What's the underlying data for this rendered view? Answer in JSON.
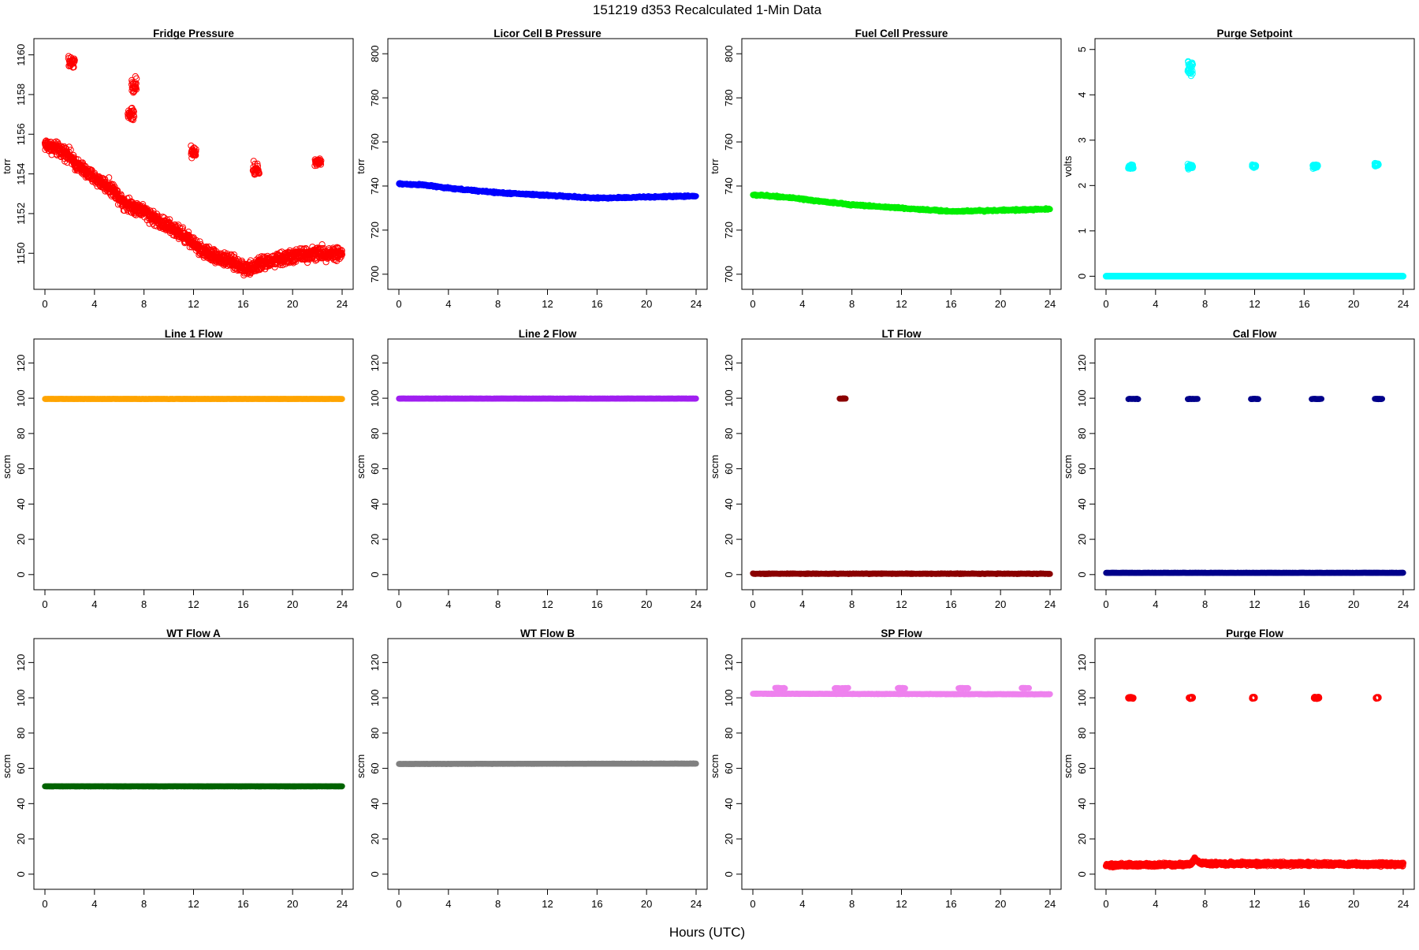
{
  "figure": {
    "title": "151219   d353   Recalculated 1-Min Data",
    "xlabel": "Hours (UTC)"
  },
  "chart_data": [
    {
      "type": "scatter",
      "title": "Fridge Pressure",
      "ylabel": "torr",
      "xlim": [
        0,
        24
      ],
      "ylim": [
        1148.5,
        1160.5
      ],
      "xticks": [
        0,
        4,
        8,
        12,
        16,
        20,
        24
      ],
      "yticks": [
        1150,
        1152,
        1154,
        1156,
        1158,
        1160
      ],
      "color": "#ff0000",
      "marker": "open-circle",
      "noise": 0.5,
      "line": [
        [
          0,
          1155.5
        ],
        [
          1.9,
          1155.0
        ],
        [
          2.3,
          1154.6
        ],
        [
          3.5,
          1154.0
        ],
        [
          5.5,
          1153.2
        ],
        [
          6.5,
          1152.5
        ],
        [
          7.8,
          1152.2
        ],
        [
          9,
          1151.7
        ],
        [
          11.5,
          1150.8
        ],
        [
          12.5,
          1150.2
        ],
        [
          14,
          1149.8
        ],
        [
          16.5,
          1149.2
        ],
        [
          17.5,
          1149.5
        ],
        [
          19,
          1149.7
        ],
        [
          20.5,
          1149.9
        ],
        [
          22,
          1150.0
        ],
        [
          24,
          1150.0
        ]
      ],
      "clusters": [
        {
          "x": [
            1.9,
            2.4
          ],
          "y": 1159.6,
          "spread": 0.6
        },
        {
          "x": [
            6.7,
            7.2
          ],
          "y": 1157.0,
          "spread": 0.5
        },
        {
          "x": [
            7.0,
            7.4
          ],
          "y": 1158.4,
          "spread": 0.6
        },
        {
          "x": [
            11.8,
            12.2
          ],
          "y": 1155.1,
          "spread": 0.4
        },
        {
          "x": [
            16.8,
            17.3
          ],
          "y": 1154.2,
          "spread": 0.6
        },
        {
          "x": [
            21.8,
            22.3
          ],
          "y": 1154.6,
          "spread": 0.3
        }
      ]
    },
    {
      "type": "scatter",
      "title": "Licor Cell B Pressure",
      "ylabel": "torr",
      "xlim": [
        0,
        24
      ],
      "ylim": [
        696,
        804
      ],
      "xticks": [
        0,
        4,
        8,
        12,
        16,
        20,
        24
      ],
      "yticks": [
        700,
        720,
        740,
        760,
        780,
        800
      ],
      "color": "#0000ff",
      "marker": "filled",
      "noise": 0.6,
      "line": [
        [
          0,
          741
        ],
        [
          2,
          740.5
        ],
        [
          4,
          739.0
        ],
        [
          8,
          737.0
        ],
        [
          12,
          735.8
        ],
        [
          16,
          734.5
        ],
        [
          20,
          735.0
        ],
        [
          24,
          735.5
        ]
      ],
      "clusters": []
    },
    {
      "type": "scatter",
      "title": "Fuel Cell Pressure",
      "ylabel": "torr",
      "xlim": [
        0,
        24
      ],
      "ylim": [
        696,
        804
      ],
      "xticks": [
        0,
        4,
        8,
        12,
        16,
        20,
        24
      ],
      "yticks": [
        700,
        720,
        740,
        760,
        780,
        800
      ],
      "color": "#00ee00",
      "marker": "filled",
      "noise": 0.6,
      "line": [
        [
          0,
          736
        ],
        [
          2,
          735.3
        ],
        [
          4,
          734.0
        ],
        [
          8,
          731.5
        ],
        [
          12,
          730.0
        ],
        [
          16,
          728.5
        ],
        [
          20,
          729.0
        ],
        [
          24,
          729.5
        ]
      ],
      "clusters": []
    },
    {
      "type": "scatter",
      "title": "Purge Setpoint",
      "ylabel": "volts",
      "xlim": [
        0,
        24
      ],
      "ylim": [
        -0.15,
        5.1
      ],
      "xticks": [
        0,
        4,
        8,
        12,
        16,
        20,
        24
      ],
      "yticks": [
        0,
        1,
        2,
        3,
        4,
        5
      ],
      "color": "#00ffff",
      "marker": "open-circle",
      "noise": 0.0,
      "line": [
        [
          0,
          0
        ],
        [
          24,
          0
        ]
      ],
      "clusters": [
        {
          "x": [
            1.8,
            2.2
          ],
          "y": 2.42,
          "spread": 0.08
        },
        {
          "x": [
            6.6,
            7.0
          ],
          "y": 2.42,
          "spread": 0.08
        },
        {
          "x": [
            6.6,
            7.0
          ],
          "y": 4.55,
          "spread": 0.3
        },
        {
          "x": [
            11.8,
            12.1
          ],
          "y": 2.43,
          "spread": 0.05
        },
        {
          "x": [
            16.7,
            17.1
          ],
          "y": 2.42,
          "spread": 0.08
        },
        {
          "x": [
            21.7,
            22.0
          ],
          "y": 2.45,
          "spread": 0.05
        }
      ]
    },
    {
      "type": "scatter",
      "title": "Line 1 Flow",
      "ylabel": "sccm",
      "xlim": [
        0,
        24
      ],
      "ylim": [
        -5,
        130
      ],
      "xticks": [
        0,
        4,
        8,
        12,
        16,
        20,
        24
      ],
      "yticks": [
        0,
        20,
        40,
        60,
        80,
        100,
        120
      ],
      "color": "#ffa500",
      "marker": "filled",
      "noise": 0.1,
      "line": [
        [
          0,
          99.6
        ],
        [
          24,
          99.6
        ]
      ],
      "clusters": []
    },
    {
      "type": "scatter",
      "title": "Line 2 Flow",
      "ylabel": "sccm",
      "xlim": [
        0,
        24
      ],
      "ylim": [
        -5,
        130
      ],
      "xticks": [
        0,
        4,
        8,
        12,
        16,
        20,
        24
      ],
      "yticks": [
        0,
        20,
        40,
        60,
        80,
        100,
        120
      ],
      "color": "#a020f0",
      "marker": "filled",
      "noise": 0.1,
      "line": [
        [
          0,
          99.8
        ],
        [
          24,
          99.8
        ]
      ],
      "clusters": []
    },
    {
      "type": "scatter",
      "title": "LT Flow",
      "ylabel": "sccm",
      "xlim": [
        0,
        24
      ],
      "ylim": [
        -5,
        130
      ],
      "xticks": [
        0,
        4,
        8,
        12,
        16,
        20,
        24
      ],
      "yticks": [
        0,
        20,
        40,
        60,
        80,
        100,
        120
      ],
      "color": "#8b0000",
      "marker": "filled",
      "noise": 0.3,
      "line": [
        [
          0,
          0.5
        ],
        [
          24,
          0.5
        ]
      ],
      "clusters": [
        {
          "x": [
            7.0,
            7.5
          ],
          "y": 99.8,
          "spread": 0.2
        }
      ]
    },
    {
      "type": "scatter",
      "title": "Cal Flow",
      "ylabel": "sccm",
      "xlim": [
        0,
        24
      ],
      "ylim": [
        -5,
        130
      ],
      "xticks": [
        0,
        4,
        8,
        12,
        16,
        20,
        24
      ],
      "yticks": [
        0,
        20,
        40,
        60,
        80,
        100,
        120
      ],
      "color": "#00008b",
      "marker": "filled",
      "noise": 0.1,
      "line": [
        [
          0,
          1.0
        ],
        [
          24,
          1.0
        ]
      ],
      "clusters": [
        {
          "x": [
            1.8,
            2.6
          ],
          "y": 99.6,
          "spread": 0.2
        },
        {
          "x": [
            6.6,
            7.4
          ],
          "y": 99.6,
          "spread": 0.2
        },
        {
          "x": [
            11.7,
            12.3
          ],
          "y": 99.6,
          "spread": 0.2
        },
        {
          "x": [
            16.6,
            17.4
          ],
          "y": 99.6,
          "spread": 0.2
        },
        {
          "x": [
            21.7,
            22.3
          ],
          "y": 99.6,
          "spread": 0.2
        }
      ]
    },
    {
      "type": "scatter",
      "title": "WT Flow A",
      "ylabel": "sccm",
      "xlim": [
        0,
        24
      ],
      "ylim": [
        -5,
        130
      ],
      "xticks": [
        0,
        4,
        8,
        12,
        16,
        20,
        24
      ],
      "yticks": [
        0,
        20,
        40,
        60,
        80,
        100,
        120
      ],
      "color": "#006400",
      "marker": "filled",
      "noise": 0.1,
      "line": [
        [
          0,
          49.8
        ],
        [
          24,
          49.8
        ]
      ],
      "clusters": []
    },
    {
      "type": "scatter",
      "title": "WT Flow B",
      "ylabel": "sccm",
      "xlim": [
        0,
        24
      ],
      "ylim": [
        -5,
        130
      ],
      "xticks": [
        0,
        4,
        8,
        12,
        16,
        20,
        24
      ],
      "yticks": [
        0,
        20,
        40,
        60,
        80,
        100,
        120
      ],
      "color": "#808080",
      "marker": "filled",
      "noise": 0.1,
      "line": [
        [
          0,
          62.5
        ],
        [
          24,
          62.7
        ]
      ],
      "clusters": []
    },
    {
      "type": "scatter",
      "title": "SP Flow",
      "ylabel": "sccm",
      "xlim": [
        0,
        24
      ],
      "ylim": [
        -5,
        130
      ],
      "xticks": [
        0,
        4,
        8,
        12,
        16,
        20,
        24
      ],
      "yticks": [
        0,
        20,
        40,
        60,
        80,
        100,
        120
      ],
      "color": "#ee82ee",
      "marker": "filled",
      "noise": 0.2,
      "line": [
        [
          0,
          102.3
        ],
        [
          24,
          102.0
        ]
      ],
      "clusters": [
        {
          "x": [
            1.8,
            2.6
          ],
          "y": 105.5,
          "spread": 0.3
        },
        {
          "x": [
            6.6,
            7.7
          ],
          "y": 105.5,
          "spread": 0.3
        },
        {
          "x": [
            11.7,
            12.3
          ],
          "y": 105.5,
          "spread": 0.3
        },
        {
          "x": [
            16.6,
            17.4
          ],
          "y": 105.5,
          "spread": 0.3
        },
        {
          "x": [
            21.7,
            22.3
          ],
          "y": 105.5,
          "spread": 0.3
        }
      ]
    },
    {
      "type": "scatter",
      "title": "Purge Flow",
      "ylabel": "sccm",
      "xlim": [
        0,
        24
      ],
      "ylim": [
        -5,
        130
      ],
      "xticks": [
        0,
        4,
        8,
        12,
        16,
        20,
        24
      ],
      "yticks": [
        0,
        20,
        40,
        60,
        80,
        100,
        120
      ],
      "color": "#ff0000",
      "marker": "open-circle",
      "noise": 1.4,
      "line": [
        [
          0,
          5.0
        ],
        [
          6.8,
          5.5
        ],
        [
          7.2,
          9.0
        ],
        [
          7.6,
          6.0
        ],
        [
          24,
          5.5
        ]
      ],
      "clusters": [
        {
          "x": [
            1.8,
            2.2
          ],
          "y": 100.0,
          "spread": 0.7
        },
        {
          "x": [
            6.7,
            7.0
          ],
          "y": 100.0,
          "spread": 0.6
        },
        {
          "x": [
            11.8,
            12.0
          ],
          "y": 100.0,
          "spread": 0.6
        },
        {
          "x": [
            16.8,
            17.2
          ],
          "y": 100.0,
          "spread": 0.7
        },
        {
          "x": [
            21.8,
            22.0
          ],
          "y": 100.0,
          "spread": 0.6
        }
      ]
    }
  ]
}
